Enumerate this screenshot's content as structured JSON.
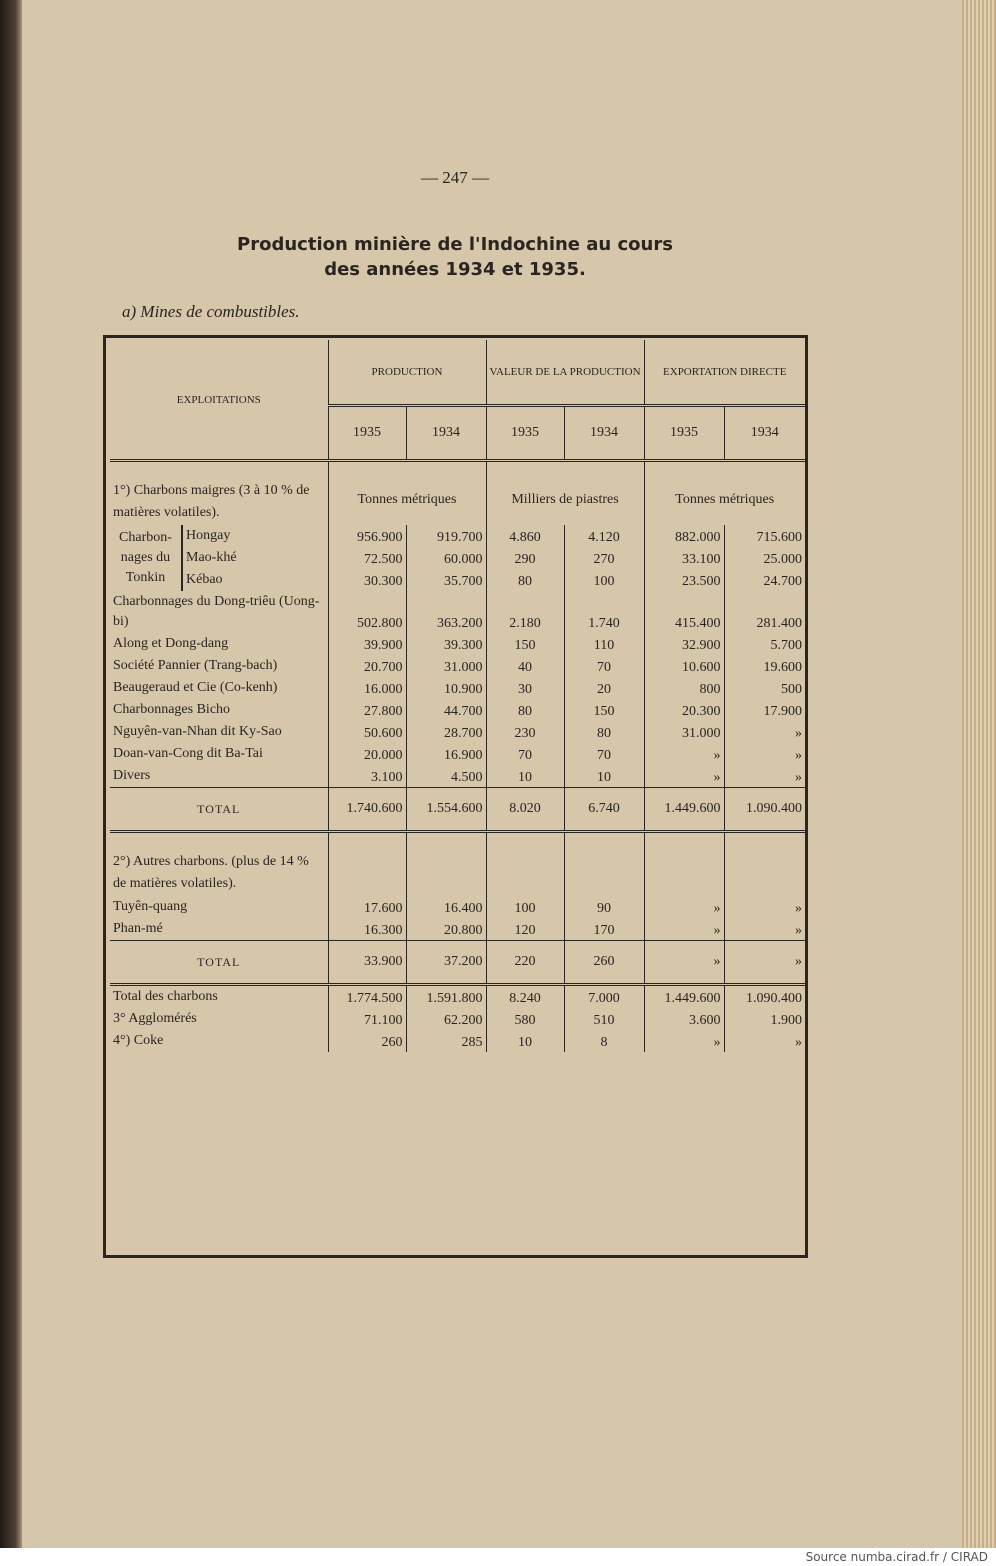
{
  "page_number": "— 247 —",
  "title": [
    "Production minière de l'Indochine au cours",
    "des années 1934 et 1935."
  ],
  "section": "a) Mines de combustibles.",
  "table": {
    "header": {
      "label": "EXPLOITATIONS",
      "groups": [
        "PRODUCTION",
        "VALEUR DE LA PRODUCTION",
        "EXPORTATION DIRECTE"
      ],
      "years": [
        "1935",
        "1934",
        "1935",
        "1934",
        "1935",
        "1934"
      ],
      "units": [
        "Tonnes métriques",
        "Milliers de piastres",
        "Tonnes métriques"
      ]
    },
    "rows": [
      {
        "heading": "1°) Charbons maigres (3 à 10 % de matières volatiles)."
      },
      {
        "group": "Charbon-nages du Tonkin",
        "items": [
          {
            "label": "Hongay",
            "values": [
              "956.900",
              "919.700",
              "4.860",
              "4.120",
              "882.000",
              "715.600"
            ]
          },
          {
            "label": "Mao-khé",
            "values": [
              "72.500",
              "60.000",
              "290",
              "270",
              "33.100",
              "25.000"
            ]
          },
          {
            "label": "Kébao",
            "values": [
              "30.300",
              "35.700",
              "80",
              "100",
              "23.500",
              "24.700"
            ]
          }
        ]
      },
      {
        "label": "Charbonnages du Dong-triêu (Uong-bi)",
        "values": [
          "502.800",
          "363.200",
          "2.180",
          "1.740",
          "415.400",
          "281.400"
        ]
      },
      {
        "label": "Along et Dong-dang",
        "values": [
          "39.900",
          "39.300",
          "150",
          "110",
          "32.900",
          "5.700"
        ]
      },
      {
        "label": "Société Pannier (Trang-bach)",
        "values": [
          "20.700",
          "31.000",
          "40",
          "70",
          "10.600",
          "19.600"
        ]
      },
      {
        "label": "Beaugeraud et Cie (Co-kenh)",
        "values": [
          "16.000",
          "10.900",
          "30",
          "20",
          "800",
          "500"
        ]
      },
      {
        "label": "Charbonnages Bicho",
        "values": [
          "27.800",
          "44.700",
          "80",
          "150",
          "20.300",
          "17.900"
        ]
      },
      {
        "label": "Nguyên-van-Nhan dit Ky-Sao",
        "values": [
          "50.600",
          "28.700",
          "230",
          "80",
          "31.000",
          "»"
        ]
      },
      {
        "label": "Doan-van-Cong dit Ba-Tai",
        "values": [
          "20.000",
          "16.900",
          "70",
          "70",
          "»",
          "»"
        ]
      },
      {
        "label": "Divers",
        "values": [
          "3.100",
          "4.500",
          "10",
          "10",
          "»",
          "»"
        ]
      },
      {
        "total": "TOTAL",
        "values": [
          "1.740.600",
          "1.554.600",
          "8.020",
          "6.740",
          "1.449.600",
          "1.090.400"
        ]
      },
      {
        "heading": "2°) Autres charbons. (plus de 14 % de matières volatiles)."
      },
      {
        "label": "Tuyên-quang",
        "values": [
          "17.600",
          "16.400",
          "100",
          "90",
          "»",
          "»"
        ]
      },
      {
        "label": "Phan-mé",
        "values": [
          "16.300",
          "20.800",
          "120",
          "170",
          "»",
          "»"
        ]
      },
      {
        "total": "TOTAL",
        "values": [
          "33.900",
          "37.200",
          "220",
          "260",
          "»",
          "»"
        ]
      },
      {
        "label": "Total des charbons",
        "values": [
          "1.774.500",
          "1.591.800",
          "8.240",
          "7.000",
          "1.449.600",
          "1.090.400"
        ]
      },
      {
        "label": "3° Agglomérés",
        "values": [
          "71.100",
          "62.200",
          "580",
          "510",
          "3.600",
          "1.900"
        ]
      },
      {
        "label": "4°) Coke",
        "values": [
          "260",
          "285",
          "10",
          "8",
          "»",
          "»"
        ]
      }
    ]
  },
  "footer": "Source numba.cirad.fr / CIRAD"
}
